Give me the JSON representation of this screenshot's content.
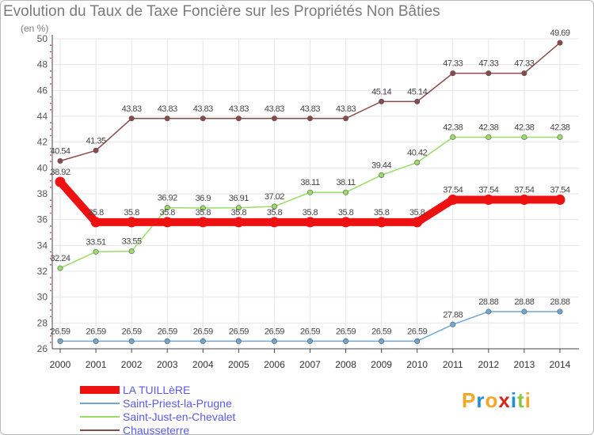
{
  "title": "Evolution du Taux de Taxe Foncière sur les Propriétés Non Bâties",
  "unit": "(en %)",
  "logo": [
    "P",
    "r",
    "o",
    "x",
    "i",
    "t",
    "i"
  ],
  "logo_colors": [
    "#f5a623",
    "#1f8fd6",
    "#f5a623",
    "#d9261c",
    "#1f8fd6",
    "#8cc63f",
    "#f5a623"
  ],
  "chart_data": {
    "type": "line",
    "title": "Evolution du Taux de Taxe Foncière sur les Propriétés Non Bâties",
    "ylabel": "(en %)",
    "xlabel": "",
    "ylim": [
      26,
      50
    ],
    "yticks": [
      26,
      28,
      30,
      32,
      34,
      36,
      38,
      40,
      42,
      44,
      46,
      48,
      50
    ],
    "x": [
      "2000",
      "2001",
      "2002",
      "2003",
      "2004",
      "2005",
      "2006",
      "2007",
      "2008",
      "2009",
      "2010",
      "2011",
      "2012",
      "2013",
      "2014"
    ],
    "grid": true,
    "series": [
      {
        "name": "LA TUILLèRE",
        "color": "#ee1111",
        "emphasis": true,
        "values": [
          38.92,
          35.8,
          35.8,
          35.8,
          35.8,
          35.8,
          35.8,
          35.8,
          35.8,
          35.8,
          35.8,
          37.54,
          37.54,
          37.54,
          37.54
        ],
        "labels": [
          "38.92",
          "35.8",
          "35.8",
          "35.8",
          "35.8",
          "35.8",
          "35.8",
          "35.8",
          "35.8",
          "35.8",
          "35.8",
          "37.54",
          "37.54",
          "37.54",
          "37.54"
        ]
      },
      {
        "name": "Saint-Priest-la-Prugne",
        "color": "#6fa7d4",
        "values": [
          26.59,
          26.59,
          26.59,
          26.59,
          26.59,
          26.59,
          26.59,
          26.59,
          26.59,
          26.59,
          26.59,
          27.88,
          28.88,
          28.88,
          28.88
        ],
        "labels": [
          "26.59",
          "26.59",
          "26.59",
          "26.59",
          "26.59",
          "26.59",
          "26.59",
          "26.59",
          "26.59",
          "26.59",
          "26.59",
          "27.88",
          "28.88",
          "28.88",
          "28.88"
        ]
      },
      {
        "name": "Saint-Just-en-Chevalet",
        "color": "#99dd66",
        "values": [
          32.24,
          33.51,
          33.55,
          36.92,
          36.9,
          36.91,
          37.02,
          38.11,
          38.11,
          39.44,
          40.42,
          42.38,
          42.38,
          42.38,
          42.38
        ],
        "labels": [
          "32.24",
          "33.51",
          "33.55",
          "36.92",
          "36.9",
          "36.91",
          "37.02",
          "38.11",
          "38.11",
          "39.44",
          "40.42",
          "42.38",
          "42.38",
          "42.38",
          "42.38"
        ]
      },
      {
        "name": "Chausseterre",
        "color": "#8b4a4a",
        "values": [
          40.54,
          41.35,
          43.83,
          43.83,
          43.83,
          43.83,
          43.83,
          43.83,
          43.83,
          45.14,
          45.14,
          47.33,
          47.33,
          47.33,
          49.69
        ],
        "labels": [
          "40.54",
          "41.35",
          "43.83",
          "43.83",
          "43.83",
          "43.83",
          "43.83",
          "43.83",
          "43.83",
          "45.14",
          "45.14",
          "47.33",
          "47.33",
          "47.33",
          "49.69"
        ]
      }
    ]
  }
}
